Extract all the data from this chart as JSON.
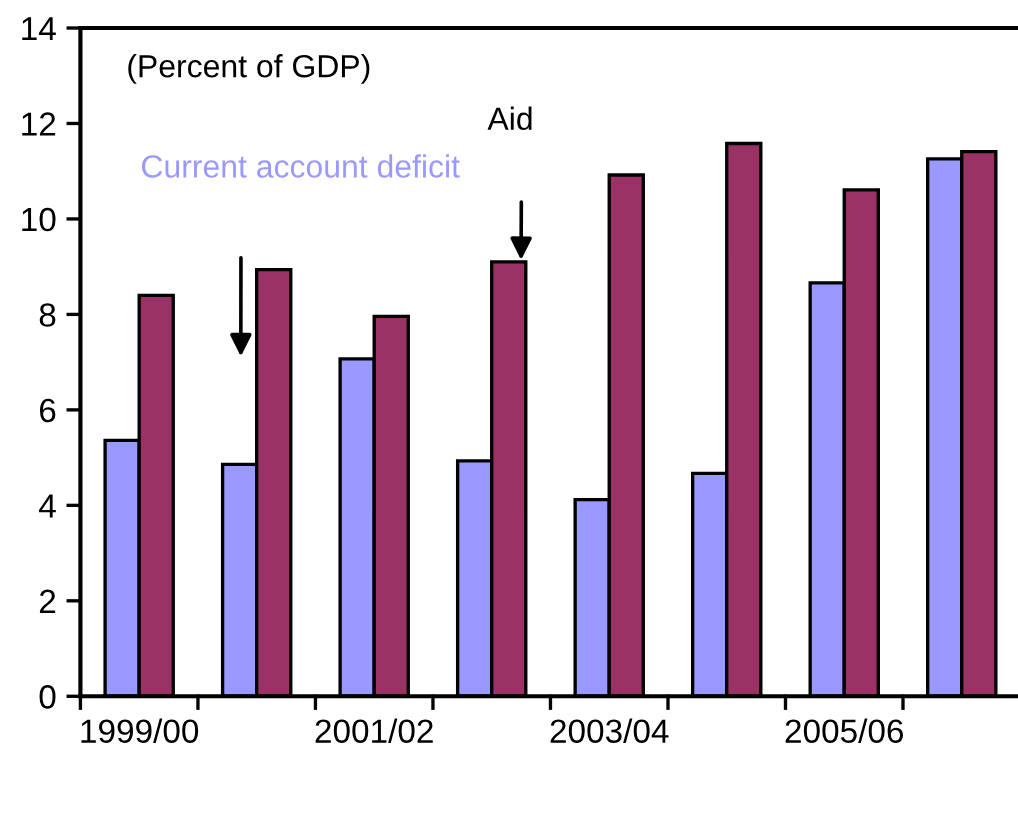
{
  "chart_data": {
    "type": "bar",
    "categories": [
      "1999/00",
      null,
      "2001/02",
      null,
      "2003/04",
      null,
      "2005/06",
      null
    ],
    "series": [
      {
        "name": "Current account deficit",
        "color": "#9999ff",
        "values": [
          5.36,
          4.86,
          7.07,
          4.93,
          4.12,
          4.67,
          8.66,
          11.26
        ]
      },
      {
        "name": "Aid",
        "color": "#993366",
        "values": [
          8.4,
          8.94,
          7.96,
          9.1,
          10.92,
          11.58,
          10.61,
          11.41
        ]
      }
    ],
    "ylim": [
      0,
      14
    ],
    "yticks": [
      0,
      2,
      4,
      6,
      8,
      10,
      12,
      14
    ],
    "annotations": [
      "(Percent of GDP)"
    ],
    "grid": false,
    "legend": false
  }
}
